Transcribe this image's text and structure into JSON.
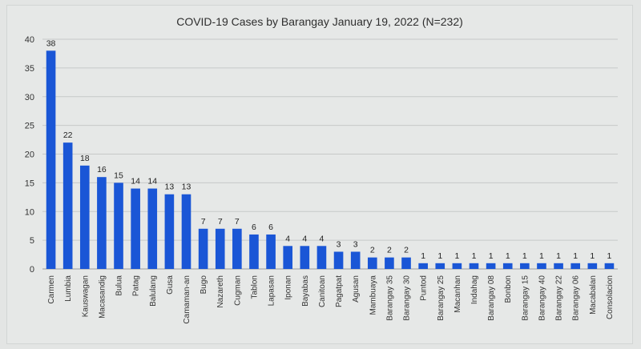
{
  "chart_data": {
    "type": "bar",
    "title": "COVID-19 Cases by Barangay January 19, 2022 (N=232)",
    "xlabel": "",
    "ylabel": "",
    "ylim": [
      0,
      40
    ],
    "yticks": [
      0,
      5,
      10,
      15,
      20,
      25,
      30,
      35,
      40
    ],
    "grid": true,
    "bar_color": "#1a56d6",
    "categories": [
      "Carmen",
      "Lumbia",
      "Kauswagan",
      "Macasandig",
      "Bulua",
      "Patag",
      "Balulang",
      "Gusa",
      "Camaman-an",
      "Bugo",
      "Nazareth",
      "Cugman",
      "Tablon",
      "Lapasan",
      "Iponan",
      "Bayabas",
      "Canitoan",
      "Pagatpat",
      "Agusan",
      "Mambuaya",
      "Barangay 35",
      "Barangay 30",
      "Puntod",
      "Barangay 25",
      "Macanhan",
      "Indahag",
      "Barangay 08",
      "Bonbon",
      "Barangay 15",
      "Barangay 40",
      "Barangay 22",
      "Barangay 06",
      "Macabalan",
      "Consolacion"
    ],
    "values": [
      38,
      22,
      18,
      16,
      15,
      14,
      14,
      13,
      13,
      7,
      7,
      7,
      6,
      6,
      4,
      4,
      4,
      3,
      3,
      2,
      2,
      2,
      1,
      1,
      1,
      1,
      1,
      1,
      1,
      1,
      1,
      1,
      1,
      1
    ]
  }
}
